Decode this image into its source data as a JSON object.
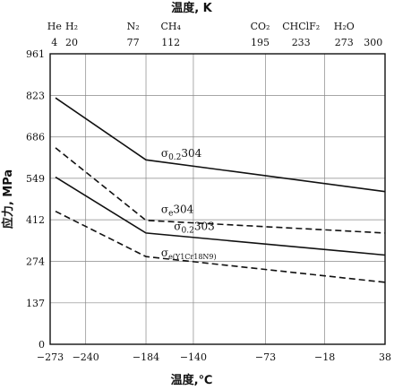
{
  "chart_data": {
    "type": "line",
    "title": "",
    "xlabel": "温度,℃",
    "ylabel": "应力, MPa",
    "top_axis_label": "温度, K",
    "xlim": [
      -273,
      38
    ],
    "ylim": [
      0,
      961
    ],
    "grid": true,
    "x_ticks": [
      -273,
      -240,
      -184,
      -140,
      -73,
      -18,
      38
    ],
    "x_tick_labels": [
      "−273",
      "−240",
      "−184",
      "−140",
      "−73",
      "−18",
      "38"
    ],
    "y_ticks": [
      0,
      137,
      274,
      412,
      549,
      686,
      823,
      961
    ],
    "y_tick_labels": [
      "0",
      "137",
      "274",
      "412",
      "549",
      "686",
      "823",
      "961"
    ],
    "top_ticks": [
      {
        "name": "He",
        "k": "4"
      },
      {
        "name": "H₂",
        "k": "20"
      },
      {
        "name": "N₂",
        "k": "77"
      },
      {
        "name": "CH₄",
        "k": "112"
      },
      {
        "name": "CO₂",
        "k": "195"
      },
      {
        "name": "CHClF₂",
        "k": "233"
      },
      {
        "name": "H₂O",
        "k": "273"
      },
      {
        "name": "",
        "k": "300"
      }
    ],
    "series": [
      {
        "name": "σ0.2 304",
        "style": "solid",
        "x": [
          -268,
          -184,
          38
        ],
        "y": [
          815,
          610,
          505
        ]
      },
      {
        "name": "σe304",
        "style": "dashed",
        "x": [
          -268,
          -184,
          38
        ],
        "y": [
          650,
          410,
          368
        ]
      },
      {
        "name": "σ0.2303",
        "style": "solid",
        "x": [
          -268,
          -184,
          38
        ],
        "y": [
          553,
          368,
          295
        ]
      },
      {
        "name": "σe(Y1Cr18N9)",
        "style": "dashed",
        "x": [
          -268,
          -184,
          38
        ],
        "y": [
          440,
          290,
          205
        ]
      }
    ],
    "annotations": [
      {
        "series": 0,
        "main": "σ",
        "sub": "0.2",
        "tail": "304",
        "x": -170,
        "y": 620
      },
      {
        "series": 1,
        "main": "σ",
        "sub": "e",
        "tail": "304",
        "x": -170,
        "y": 435
      },
      {
        "series": 2,
        "main": "σ",
        "sub": "0.2",
        "tail": "303",
        "x": -158,
        "y": 378
      },
      {
        "series": 3,
        "main": "σ",
        "sub": "e(Y1Cr18N9)",
        "tail": "",
        "x": -170,
        "y": 290
      }
    ]
  }
}
